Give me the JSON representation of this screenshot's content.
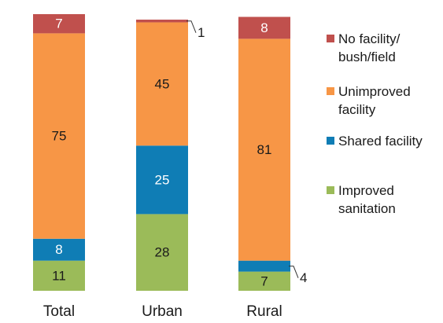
{
  "chart_data": {
    "type": "stacked-bar",
    "categories": [
      "Total",
      "Urban",
      "Rural"
    ],
    "series": [
      {
        "name": "Improved\nsanitation",
        "color": "#9bbb59",
        "label_color": "#1a1a1a",
        "values": [
          11,
          28,
          7
        ]
      },
      {
        "name": "Shared facility",
        "color": "#0f7db5",
        "label_color": "#ffffff",
        "values": [
          8,
          25,
          4
        ]
      },
      {
        "name": "Unimproved\nfacility",
        "color": "#f79646",
        "label_color": "#1a1a1a",
        "values": [
          75,
          45,
          81
        ]
      },
      {
        "name": "No facility/\nbush/field",
        "color": "#c0504d",
        "label_color": "#ffffff",
        "values": [
          7,
          1,
          8
        ]
      }
    ],
    "ylim": [
      0,
      101
    ]
  }
}
